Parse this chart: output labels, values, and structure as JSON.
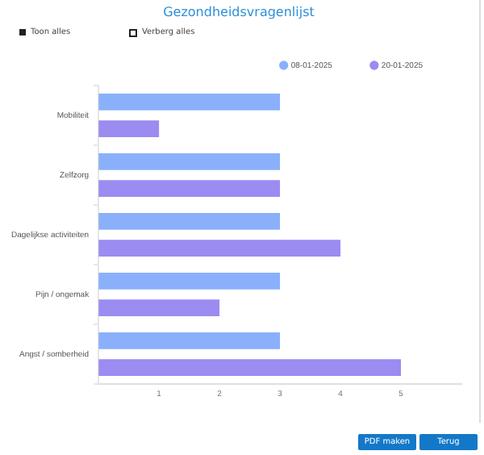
{
  "chart_data": {
    "type": "bar",
    "orientation": "horizontal",
    "title": "Gezondheidsvragenlijst",
    "categories": [
      "Mobiliteit",
      "Zelfzorg",
      "Dagelijkse activiteiten",
      "Pijn / ongemak",
      "Angst / somberheid"
    ],
    "series": [
      {
        "name": "08-01-2025",
        "color": "#8ab0fb",
        "values": [
          3,
          3,
          3,
          3,
          3
        ]
      },
      {
        "name": "20-01-2025",
        "color": "#9a8cf1",
        "values": [
          1,
          3,
          4,
          2,
          5
        ]
      }
    ],
    "xlim": [
      0,
      6
    ],
    "xticks": [
      1,
      2,
      3,
      4,
      5
    ],
    "grid": false,
    "legend": "top",
    "annotations": [
      "Toon alles",
      "Verberg alles",
      "PDF maken",
      "Terug"
    ]
  }
}
